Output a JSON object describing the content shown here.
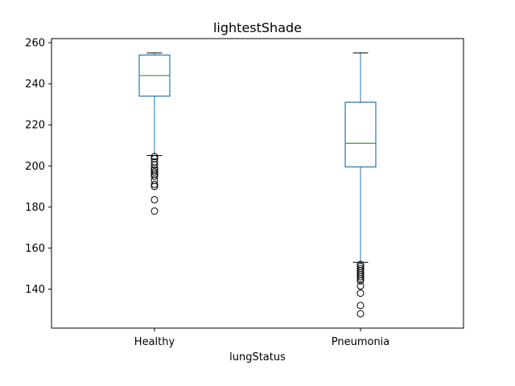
{
  "chart_data": {
    "type": "box",
    "title": "lightestShade",
    "xlabel": "lungStatus",
    "ylabel": "",
    "ylim": [
      121,
      262
    ],
    "yticks": [
      140,
      160,
      180,
      200,
      220,
      240,
      260
    ],
    "grid": false,
    "colors": {
      "box": "#1f77b4",
      "median": "#2ca02c",
      "flier": "#000000",
      "whisker": "#1f77b4",
      "cap": "#000000"
    },
    "categories": [
      "Healthy",
      "Pneumonia"
    ],
    "boxes": [
      {
        "category": "Healthy",
        "whisker_low": 205,
        "q1": 234,
        "median": 244,
        "q3": 254,
        "whisker_high": 255,
        "fliers": [
          178,
          183.5,
          190,
          191,
          193,
          195,
          196,
          197,
          198,
          199,
          200.5,
          202,
          203.5,
          204.5
        ]
      },
      {
        "category": "Pneumonia",
        "whisker_low": 153,
        "q1": 199.5,
        "median": 211,
        "q3": 231,
        "whisker_high": 255,
        "fliers": [
          128,
          132,
          138,
          141.5,
          144,
          145,
          146,
          147,
          148,
          149,
          150,
          151,
          152
        ]
      }
    ]
  }
}
